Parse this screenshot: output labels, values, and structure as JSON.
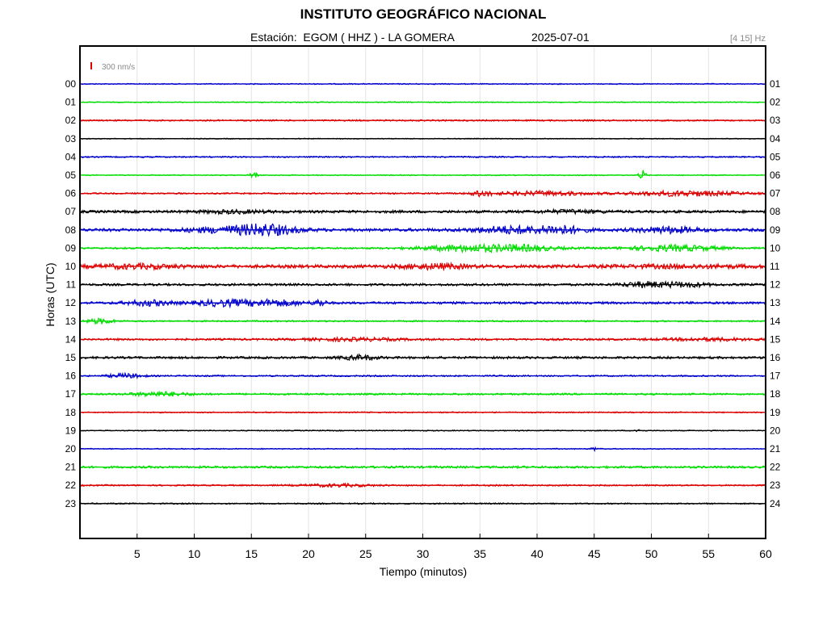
{
  "chart_data": {
    "type": "line",
    "title": "INSTITUTO GEOGRÁFICO NACIONAL",
    "subtitle_station": "Estación:  EGOM ( HHZ ) - LA GOMERA",
    "date": "2025-07-01",
    "filter": "[4 15] Hz",
    "scale_label": "300 nm/s",
    "scale_color": "#e00000",
    "xlabel": "Tiempo (minutos)",
    "ylabel": "Horas (UTC)",
    "xlim": [
      0,
      60
    ],
    "x_ticks": [
      5,
      10,
      15,
      20,
      25,
      30,
      35,
      40,
      45,
      50,
      55,
      60
    ],
    "left_labels": [
      "00",
      "01",
      "02",
      "03",
      "04",
      "05",
      "06",
      "07",
      "08",
      "09",
      "10",
      "11",
      "12",
      "13",
      "14",
      "15",
      "16",
      "17",
      "18",
      "19",
      "20",
      "21",
      "22",
      "23"
    ],
    "right_labels": [
      "01",
      "02",
      "03",
      "04",
      "05",
      "06",
      "07",
      "08",
      "09",
      "10",
      "11",
      "12",
      "13",
      "14",
      "15",
      "16",
      "17",
      "18",
      "19",
      "20",
      "21",
      "22",
      "23",
      "24"
    ],
    "colors": [
      "#0000cc",
      "#00dd00",
      "#dd0000",
      "#000000"
    ],
    "grid": true,
    "traces": [
      {
        "hour": "00",
        "color": "#0000cc",
        "noise": 0.6,
        "bursts": []
      },
      {
        "hour": "01",
        "color": "#00dd00",
        "noise": 0.6,
        "bursts": []
      },
      {
        "hour": "02",
        "color": "#dd0000",
        "noise": 0.9,
        "bursts": []
      },
      {
        "hour": "03",
        "color": "#000000",
        "noise": 0.5,
        "bursts": []
      },
      {
        "hour": "04",
        "color": "#0000cc",
        "noise": 0.8,
        "bursts": []
      },
      {
        "hour": "05",
        "color": "#00dd00",
        "noise": 0.6,
        "bursts": [
          {
            "t": 15.2,
            "w": 0.3,
            "a": 5
          },
          {
            "t": 49.2,
            "w": 0.3,
            "a": 6
          }
        ]
      },
      {
        "hour": "06",
        "color": "#dd0000",
        "noise": 0.9,
        "bursts": [
          {
            "t": 35.2,
            "w": 1.0,
            "a": 3
          },
          {
            "t": 40.5,
            "w": 4.0,
            "a": 2.5
          },
          {
            "t": 53.0,
            "w": 5.0,
            "a": 3
          }
        ]
      },
      {
        "hour": "07",
        "color": "#000000",
        "noise": 1.6,
        "bursts": [
          {
            "t": 13.5,
            "w": 3.0,
            "a": 1.5
          },
          {
            "t": 43.0,
            "w": 3.0,
            "a": 1.5
          }
        ]
      },
      {
        "hour": "08",
        "color": "#0000cc",
        "noise": 1.8,
        "bursts": [
          {
            "t": 13.5,
            "w": 4.0,
            "a": 3.5
          },
          {
            "t": 16.5,
            "w": 2.5,
            "a": 4.5
          },
          {
            "t": 37.5,
            "w": 3.0,
            "a": 4
          },
          {
            "t": 42.0,
            "w": 2.0,
            "a": 4.5
          },
          {
            "t": 51.5,
            "w": 2.5,
            "a": 3.5
          }
        ]
      },
      {
        "hour": "09",
        "color": "#00dd00",
        "noise": 1.0,
        "bursts": [
          {
            "t": 34.0,
            "w": 4.0,
            "a": 4
          },
          {
            "t": 39.0,
            "w": 3.0,
            "a": 3
          },
          {
            "t": 52.0,
            "w": 4.0,
            "a": 3.5
          }
        ]
      },
      {
        "hour": "10",
        "color": "#dd0000",
        "noise": 2.0,
        "bursts": [
          {
            "t": 5.0,
            "w": 4.0,
            "a": 2
          },
          {
            "t": 31.0,
            "w": 3.0,
            "a": 2.5
          },
          {
            "t": 53.0,
            "w": 6.0,
            "a": 1.5
          }
        ]
      },
      {
        "hour": "11",
        "color": "#000000",
        "noise": 1.4,
        "bursts": [
          {
            "t": 49.5,
            "w": 2.0,
            "a": 3
          },
          {
            "t": 53.0,
            "w": 2.0,
            "a": 2.5
          }
        ]
      },
      {
        "hour": "12",
        "color": "#0000cc",
        "noise": 1.4,
        "bursts": [
          {
            "t": 6.0,
            "w": 2.0,
            "a": 3
          },
          {
            "t": 12.5,
            "w": 2.5,
            "a": 3.5
          },
          {
            "t": 17.0,
            "w": 2.5,
            "a": 3.5
          },
          {
            "t": 21.0,
            "w": 0.5,
            "a": 4
          }
        ]
      },
      {
        "hour": "13",
        "color": "#00dd00",
        "noise": 0.9,
        "bursts": [
          {
            "t": 1.8,
            "w": 1.2,
            "a": 3
          }
        ]
      },
      {
        "hour": "14",
        "color": "#dd0000",
        "noise": 1.2,
        "bursts": [
          {
            "t": 24.0,
            "w": 4.0,
            "a": 1.5
          },
          {
            "t": 55.0,
            "w": 4.0,
            "a": 1.5
          }
        ]
      },
      {
        "hour": "15",
        "color": "#000000",
        "noise": 1.4,
        "bursts": [
          {
            "t": 24.5,
            "w": 1.5,
            "a": 2.5
          }
        ]
      },
      {
        "hour": "16",
        "color": "#0000cc",
        "noise": 0.9,
        "bursts": [
          {
            "t": 4.0,
            "w": 1.5,
            "a": 2.5
          }
        ]
      },
      {
        "hour": "17",
        "color": "#00dd00",
        "noise": 1.1,
        "bursts": [
          {
            "t": 7.0,
            "w": 2.5,
            "a": 2.5
          }
        ]
      },
      {
        "hour": "18",
        "color": "#dd0000",
        "noise": 0.7,
        "bursts": []
      },
      {
        "hour": "19",
        "color": "#000000",
        "noise": 0.6,
        "bursts": [
          {
            "t": 48.8,
            "w": 0.3,
            "a": 2
          }
        ]
      },
      {
        "hour": "20",
        "color": "#0000cc",
        "noise": 0.6,
        "bursts": [
          {
            "t": 45.0,
            "w": 0.3,
            "a": 2
          }
        ]
      },
      {
        "hour": "21",
        "color": "#00dd00",
        "noise": 1.3,
        "bursts": []
      },
      {
        "hour": "22",
        "color": "#dd0000",
        "noise": 0.9,
        "bursts": [
          {
            "t": 22.5,
            "w": 3.0,
            "a": 1.5
          }
        ]
      },
      {
        "hour": "23",
        "color": "#000000",
        "noise": 0.8,
        "bursts": []
      }
    ]
  }
}
